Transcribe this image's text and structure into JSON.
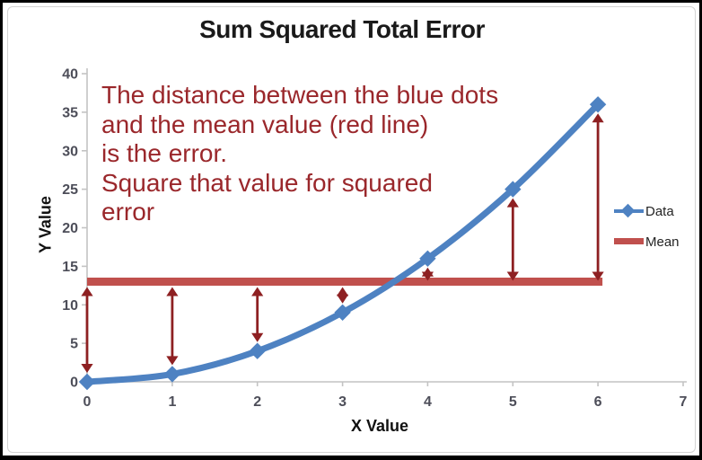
{
  "chart_data": {
    "type": "line",
    "title": "Sum Squared Total Error",
    "xlabel": "X Value",
    "ylabel": "Y Value",
    "x": [
      0,
      1,
      2,
      3,
      4,
      5,
      6
    ],
    "series": [
      {
        "name": "Data",
        "values": [
          0,
          1,
          4,
          9,
          16,
          25,
          36
        ],
        "color": "#4e82c2",
        "marker": "diamond",
        "style": "smooth_line"
      },
      {
        "name": "Mean",
        "values": [
          13,
          13,
          13,
          13,
          13,
          13,
          13
        ],
        "color": "#c0504d",
        "marker": "none",
        "style": "thick_line"
      }
    ],
    "xlim": [
      0,
      7
    ],
    "ylim": [
      0,
      40
    ],
    "x_ticks": [
      0,
      1,
      2,
      3,
      4,
      5,
      6,
      7
    ],
    "y_ticks": [
      0,
      5,
      10,
      15,
      20,
      25,
      30,
      35,
      40
    ],
    "grid": false,
    "legend_position": "right",
    "error_arrows": {
      "color": "#8e2022",
      "between": "each Data point and the Mean line"
    }
  },
  "annotation": {
    "lines": [
      "The distance between the blue dots",
      "and the mean value (red line)",
      "is the error.",
      "Square that value for squared",
      "error"
    ],
    "color": "#9a272b"
  },
  "colors": {
    "axis": "#c3c3c3",
    "tick_label": "#4d4e59"
  }
}
